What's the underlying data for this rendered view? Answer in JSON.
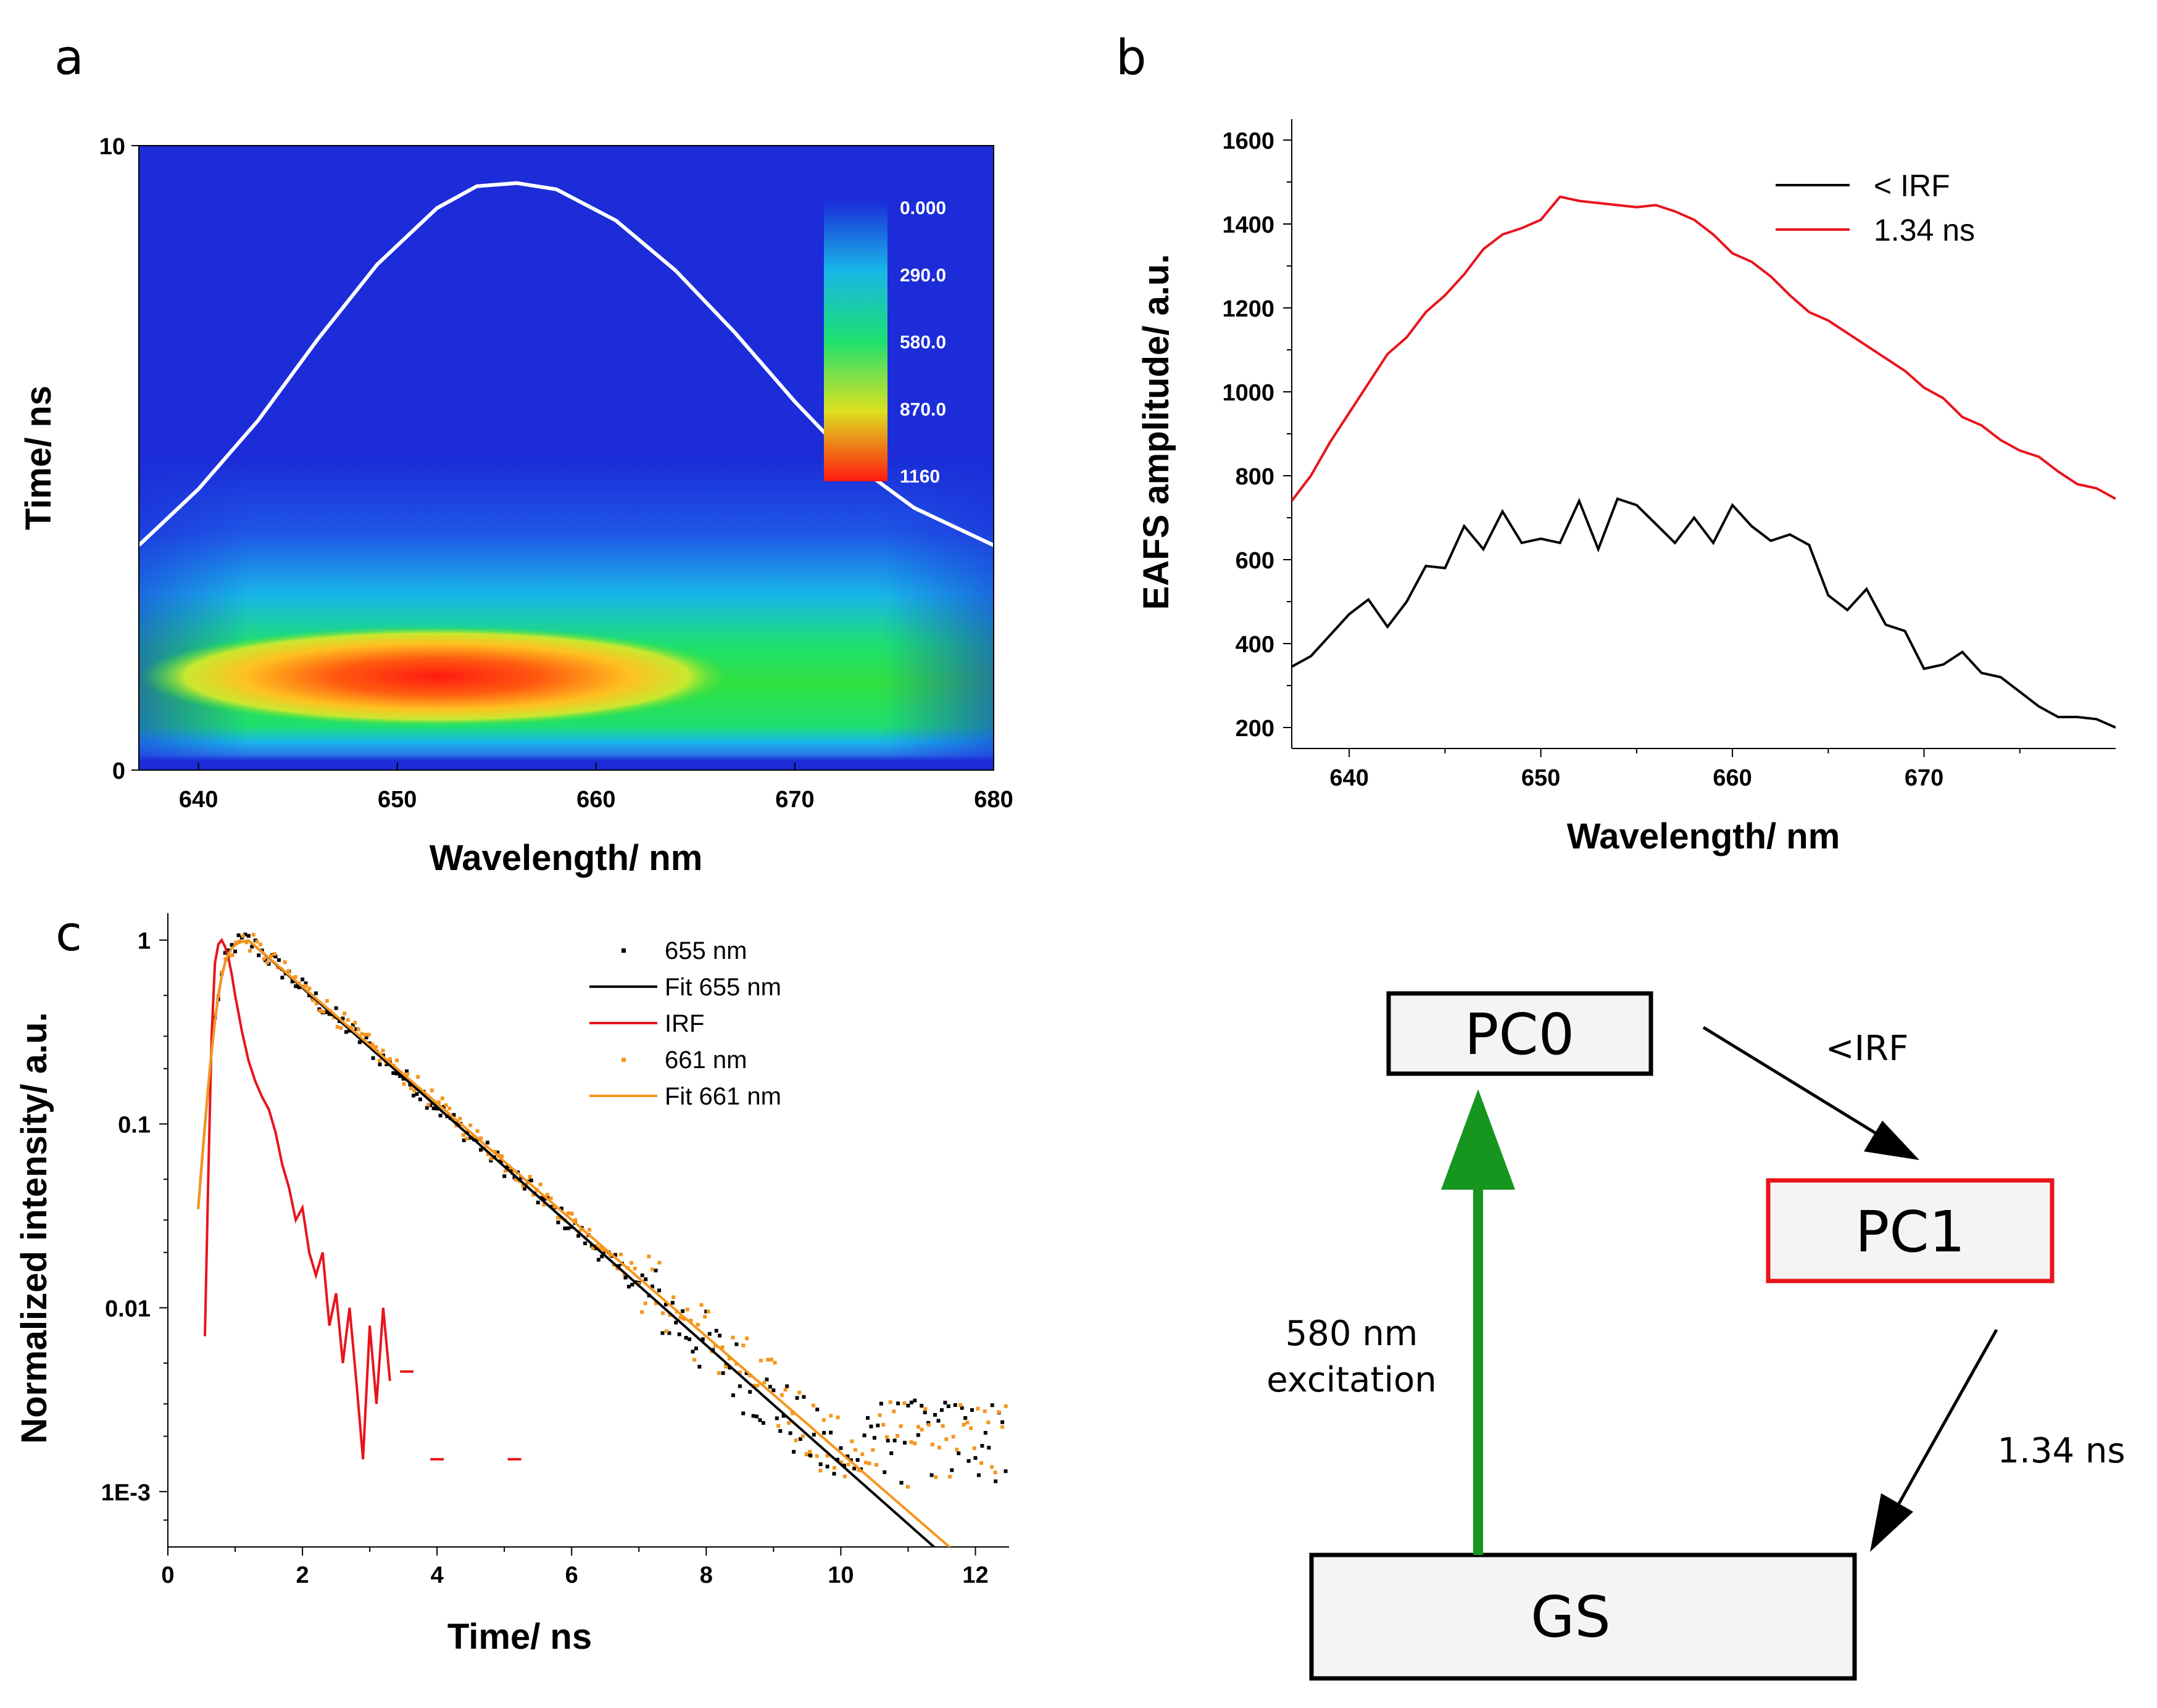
{
  "panels": {
    "a": "a",
    "b": "b",
    "c": "c"
  },
  "chart_data": [
    {
      "id": "a",
      "type": "heatmap",
      "xlabel": "Wavelength/ nm",
      "ylabel": "Time/ ns",
      "xlim": [
        637,
        680
      ],
      "ylim": [
        0,
        10
      ],
      "xticks": [
        640,
        650,
        660,
        670,
        680
      ],
      "yticks": [
        0,
        10
      ],
      "colorbar": {
        "ticks": [
          "0.000",
          "290.0",
          "580.0",
          "870.0",
          "1160"
        ],
        "range": [
          0,
          1160
        ],
        "colors": [
          "#1b2cd8",
          "#18b6e8",
          "#1ee070",
          "#dde020",
          "#ff1a10"
        ]
      },
      "hotspot": {
        "x_center": 652,
        "time_center": 1.5,
        "peak_value": 1160
      },
      "overlay_line": {
        "color": "#ffffff",
        "x": [
          637,
          640,
          643,
          646,
          649,
          652,
          654,
          656,
          658,
          661,
          664,
          667,
          670,
          673,
          676,
          680
        ],
        "y": [
          3.6,
          4.5,
          5.6,
          6.9,
          8.1,
          9.0,
          9.35,
          9.4,
          9.3,
          8.8,
          8.0,
          7.0,
          5.9,
          4.9,
          4.2,
          3.6
        ]
      }
    },
    {
      "id": "b",
      "type": "line",
      "xlabel": "Wavelength/ nm",
      "ylabel": "EAFS amplitude/ a.u.",
      "xlim": [
        637,
        680
      ],
      "ylim": [
        150,
        1650
      ],
      "xticks": [
        640,
        650,
        660,
        670
      ],
      "yticks": [
        200,
        400,
        600,
        800,
        1000,
        1200,
        1400,
        1600
      ],
      "legend_position": "top-right",
      "x": [
        637,
        638,
        639,
        640,
        641,
        642,
        643,
        644,
        645,
        646,
        647,
        648,
        649,
        650,
        651,
        652,
        653,
        654,
        655,
        656,
        657,
        658,
        659,
        660,
        661,
        662,
        663,
        664,
        665,
        666,
        667,
        668,
        669,
        670,
        671,
        672,
        673,
        674,
        675,
        676,
        677,
        678,
        679,
        680
      ],
      "series": [
        {
          "name": "< IRF",
          "color": "#000000",
          "values": [
            345,
            370,
            420,
            470,
            505,
            440,
            500,
            585,
            580,
            680,
            625,
            715,
            640,
            650,
            640,
            740,
            625,
            745,
            730,
            685,
            640,
            700,
            640,
            730,
            680,
            645,
            660,
            635,
            515,
            480,
            530,
            445,
            430,
            340,
            350,
            380,
            330,
            320,
            285,
            250,
            225,
            225,
            220,
            200
          ]
        },
        {
          "name": "1.34 ns",
          "color": "#e8141c",
          "values": [
            740,
            800,
            880,
            950,
            1020,
            1090,
            1130,
            1190,
            1230,
            1280,
            1340,
            1375,
            1390,
            1410,
            1465,
            1455,
            1450,
            1445,
            1440,
            1445,
            1430,
            1410,
            1375,
            1330,
            1310,
            1275,
            1230,
            1190,
            1170,
            1140,
            1110,
            1080,
            1050,
            1010,
            985,
            940,
            920,
            885,
            860,
            845,
            810,
            780,
            770,
            745
          ]
        }
      ]
    },
    {
      "id": "c",
      "type": "scatter",
      "xlabel": "Time/ ns",
      "ylabel": "Normalized intensity/ a.u.",
      "xlim": [
        0,
        12.5
      ],
      "ylim": [
        0.0005,
        1.4
      ],
      "yscale": "log",
      "xticks": [
        0,
        2,
        4,
        6,
        8,
        10,
        12
      ],
      "ytick_labels": [
        "1E-3",
        "0.01",
        "0.1",
        "1"
      ],
      "ytick_values": [
        0.001,
        0.01,
        0.1,
        1
      ],
      "legend_position": "top-right",
      "series": [
        {
          "name": "655 nm",
          "kind": "points",
          "color": "#000000",
          "peak_time": 1.2,
          "decay_tau": 1.34,
          "noise_floor": 0.0015
        },
        {
          "name": "Fit 655 nm",
          "kind": "line",
          "color": "#000000",
          "peak_time": 1.2,
          "decay_tau": 1.34
        },
        {
          "name": "IRF",
          "kind": "line",
          "color": "#e8141c",
          "x": [
            0.55,
            0.6,
            0.65,
            0.7,
            0.75,
            0.8,
            0.85,
            0.9,
            0.95,
            1.0,
            1.05,
            1.1,
            1.2,
            1.3,
            1.4,
            1.5,
            1.6,
            1.7,
            1.8,
            1.9,
            2.0,
            2.1,
            2.2,
            2.3,
            2.4,
            2.5,
            2.6,
            2.7,
            2.8,
            2.9,
            3.0,
            3.1,
            3.2,
            3.3
          ],
          "y": [
            0.007,
            0.05,
            0.3,
            0.75,
            0.95,
            1.0,
            0.92,
            0.8,
            0.65,
            0.5,
            0.4,
            0.32,
            0.22,
            0.17,
            0.14,
            0.12,
            0.09,
            0.06,
            0.045,
            0.03,
            0.035,
            0.02,
            0.015,
            0.02,
            0.008,
            0.012,
            0.005,
            0.01,
            0.004,
            0.0015,
            0.008,
            0.003,
            0.01,
            0.004
          ]
        },
        {
          "name": "661 nm",
          "kind": "points",
          "color": "#f5961e",
          "peak_time": 1.2,
          "decay_tau": 1.37,
          "noise_floor": 0.0015
        },
        {
          "name": "Fit 661 nm",
          "kind": "line",
          "color": "#f5961e",
          "peak_time": 1.2,
          "decay_tau": 1.37
        }
      ]
    }
  ],
  "diagram": {
    "boxes": {
      "pc0": "PC0",
      "pc1": "PC1",
      "gs": "GS"
    },
    "box_border_colors": {
      "pc0": "#000000",
      "pc1": "#e8141c",
      "gs": "#000000"
    },
    "box_fill": "#f4f4f4",
    "arrow_colors": {
      "excitation": "#16961e",
      "transitions": "#000000"
    },
    "labels": {
      "irf": "<IRF",
      "lifetime": "1.34 ns",
      "excitation_line1": "580 nm",
      "excitation_line2": "excitation"
    }
  }
}
